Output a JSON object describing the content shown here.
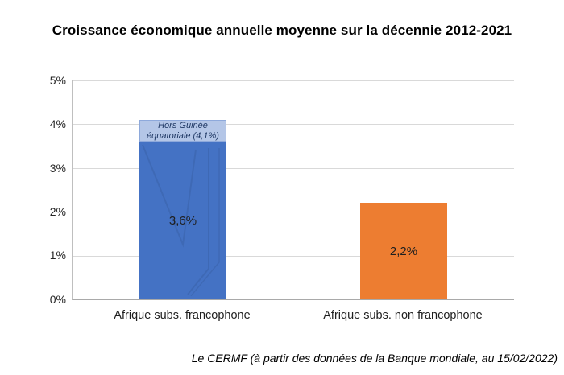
{
  "title": "Croissance économique annuelle moyenne sur la décennie 2012-2021",
  "footer": "Le CERMF (à partir des données de la Banque mondiale, au 15/02/2022)",
  "chart_data": {
    "type": "bar",
    "title": "Croissance économique annuelle moyenne sur la décennie 2012-2021",
    "categories": [
      "Afrique subs. francophone",
      "Afrique subs. non francophone"
    ],
    "yticks": [
      "5%",
      "4%",
      "3%",
      "2%",
      "1%",
      "0%"
    ],
    "ylim": [
      0,
      5
    ],
    "grid": true,
    "legend": "none",
    "bars": [
      {
        "category": "Afrique subs. francophone",
        "value": 3.6,
        "label": "3,6%",
        "color": "#4472C4",
        "cap": {
          "value": 4.1,
          "color": "#B4C6E7",
          "line1": "Hors Guinée",
          "line2": "équatoriale (4,1%)"
        }
      },
      {
        "category": "Afrique subs. non francophone",
        "value": 2.2,
        "label": "2,2%",
        "color": "#ED7D31"
      }
    ],
    "source": "Le CERMF (à partir des données de la Banque mondiale, au 15/02/2022)"
  },
  "colors": {
    "bar_blue": "#4472C4",
    "bar_blue_light": "#B4C6E7",
    "bar_orange": "#ED7D31",
    "gridline": "#D9D9D9",
    "axis_line": "#BFBFBF",
    "cap_text": "#1F3864"
  }
}
